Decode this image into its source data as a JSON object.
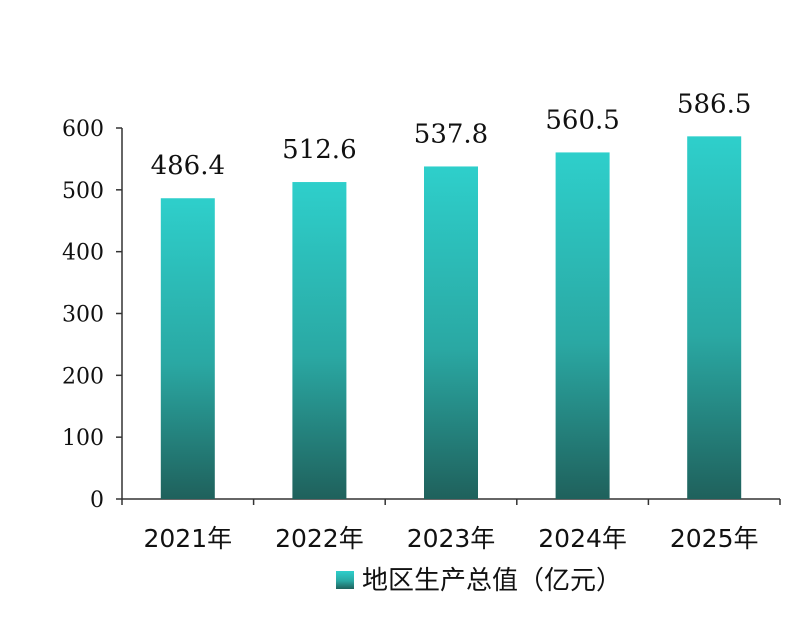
{
  "chart_data": {
    "type": "bar",
    "categories": [
      "2021年",
      "2022年",
      "2023年",
      "2024年",
      "2025年"
    ],
    "series": [
      {
        "name": "地区生产总值（亿元）",
        "values": [
          486.4,
          512.6,
          537.8,
          560.5,
          586.5
        ]
      }
    ],
    "data_labels": [
      "486.4",
      "512.6",
      "537.8",
      "560.5",
      "586.5"
    ],
    "title": "",
    "xlabel": "",
    "ylabel": "",
    "ylim": [
      0,
      600
    ],
    "yticks": [
      0,
      100,
      200,
      300,
      400,
      500,
      600
    ],
    "grid": false,
    "legend_position": "bottom",
    "colors": {
      "bar_top": "#2ecfcb",
      "bar_bottom": "#1f615c",
      "axis": "#333333"
    }
  }
}
